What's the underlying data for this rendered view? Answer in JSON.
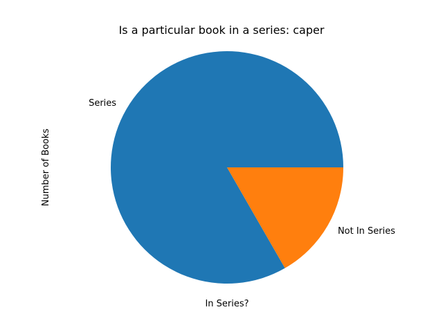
{
  "chart_data": {
    "type": "pie",
    "title": "Is a particular book in a series: caper",
    "xlabel": "In Series?",
    "ylabel": "Number of Books",
    "slices": [
      {
        "label": "Series",
        "value": 0.833,
        "color": "#1f77b4"
      },
      {
        "label": "Not In Series",
        "value": 0.167,
        "color": "#ff7f0e"
      }
    ],
    "start_angle_deg": 0,
    "direction": "counterclockwise",
    "legend": "none"
  }
}
